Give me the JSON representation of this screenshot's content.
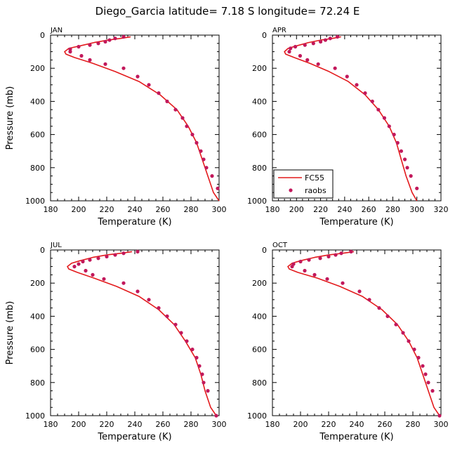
{
  "figure_title": "Diego_Garcia   latitude= 7.18 S longitude= 72.24 E",
  "chart_data": [
    {
      "type": "line",
      "panel_label": "JAN",
      "xlabel": "Temperature (K)",
      "ylabel": "Pressure (mb)",
      "xlim": [
        180,
        300
      ],
      "xticks": [
        "180",
        "200",
        "220",
        "240",
        "260",
        "280",
        "300"
      ],
      "ylim": [
        1000,
        0
      ],
      "yticks": [
        "0",
        "200",
        "400",
        "600",
        "800",
        "1000"
      ],
      "series": [
        {
          "name": "FC55",
          "kind": "line",
          "color": "#e31a1c",
          "x": [
            237,
            230,
            221,
            211,
            201,
            193,
            190,
            191,
            197,
            210,
            226,
            243,
            258,
            270,
            278,
            284,
            288,
            292,
            296,
            300
          ],
          "y": [
            10,
            20,
            30,
            45,
            65,
            80,
            100,
            115,
            135,
            170,
            220,
            280,
            360,
            450,
            550,
            650,
            750,
            850,
            950,
            1000
          ]
        },
        {
          "name": "raobs",
          "kind": "scatter",
          "color": "#c2185b",
          "x": [
            232,
            226,
            222,
            219,
            214,
            208,
            200,
            194,
            194,
            202,
            208,
            219,
            232,
            242,
            250,
            257,
            263,
            269,
            274,
            277,
            281,
            284,
            287,
            289,
            291,
            295,
            299
          ],
          "y": [
            10,
            20,
            30,
            40,
            50,
            60,
            70,
            85,
            100,
            125,
            150,
            175,
            200,
            250,
            300,
            350,
            400,
            450,
            500,
            550,
            600,
            650,
            700,
            750,
            800,
            850,
            925
          ]
        }
      ]
    },
    {
      "type": "line",
      "panel_label": "APR",
      "xlabel": "Temperature (K)",
      "ylabel": "",
      "xlim": [
        180,
        320
      ],
      "xticks": [
        "180",
        "200",
        "220",
        "240",
        "260",
        "280",
        "300",
        "320"
      ],
      "ylim": [
        1000,
        0
      ],
      "yticks": [
        "0",
        "200",
        "400",
        "600",
        "800",
        "1000"
      ],
      "legend": [
        {
          "name": "FC55",
          "kind": "line"
        },
        {
          "name": "raobs",
          "kind": "scatter"
        }
      ],
      "series": [
        {
          "name": "FC55",
          "kind": "line",
          "color": "#e31a1c",
          "x": [
            237,
            230,
            220,
            210,
            200,
            193,
            190,
            191,
            198,
            211,
            227,
            243,
            257,
            268,
            277,
            283,
            287,
            291,
            296,
            300
          ],
          "y": [
            10,
            20,
            30,
            45,
            65,
            80,
            100,
            115,
            135,
            170,
            220,
            280,
            360,
            450,
            550,
            650,
            750,
            850,
            950,
            1000
          ]
        },
        {
          "name": "raobs",
          "kind": "scatter",
          "color": "#c2185b",
          "x": [
            234,
            228,
            224,
            220,
            214,
            207,
            199,
            195,
            194,
            203,
            209,
            218,
            232,
            242,
            250,
            257,
            263,
            268,
            273,
            277,
            281,
            284,
            287,
            290,
            292,
            295,
            300
          ],
          "y": [
            10,
            20,
            30,
            40,
            50,
            60,
            70,
            80,
            100,
            125,
            150,
            175,
            200,
            250,
            300,
            350,
            400,
            450,
            500,
            550,
            600,
            650,
            700,
            750,
            800,
            850,
            925
          ]
        }
      ]
    },
    {
      "type": "line",
      "panel_label": "JUL",
      "xlabel": "Temperature (K)",
      "ylabel": "Pressure (mb)",
      "xlim": [
        180,
        300
      ],
      "xticks": [
        "180",
        "200",
        "220",
        "240",
        "260",
        "280",
        "300"
      ],
      "ylim": [
        1000,
        0
      ],
      "yticks": [
        "0",
        "200",
        "400",
        "600",
        "800",
        "1000"
      ],
      "series": [
        {
          "name": "FC55",
          "kind": "line",
          "color": "#e31a1c",
          "x": [
            238,
            230,
            220,
            210,
            201,
            195,
            192,
            193,
            199,
            211,
            227,
            243,
            257,
            268,
            276,
            283,
            287,
            290,
            294,
            298
          ],
          "y": [
            10,
            20,
            30,
            45,
            65,
            80,
            100,
            115,
            135,
            170,
            220,
            280,
            360,
            450,
            550,
            650,
            750,
            850,
            950,
            1000
          ]
        },
        {
          "name": "raobs",
          "kind": "scatter",
          "color": "#c2185b",
          "x": [
            242,
            232,
            226,
            220,
            214,
            208,
            203,
            200,
            197,
            205,
            210,
            218,
            232,
            242,
            250,
            257,
            263,
            269,
            273,
            277,
            281,
            284,
            286,
            288,
            289,
            292,
            298
          ],
          "y": [
            10,
            20,
            30,
            40,
            50,
            60,
            70,
            85,
            100,
            125,
            150,
            175,
            200,
            250,
            300,
            350,
            400,
            450,
            500,
            550,
            600,
            650,
            700,
            750,
            800,
            850,
            1000
          ]
        }
      ]
    },
    {
      "type": "line",
      "panel_label": "OCT",
      "xlabel": "Temperature (K)",
      "ylabel": "",
      "xlim": [
        180,
        300
      ],
      "xticks": [
        "180",
        "200",
        "220",
        "240",
        "260",
        "280",
        "300"
      ],
      "ylim": [
        1000,
        0
      ],
      "yticks": [
        "0",
        "200",
        "400",
        "600",
        "800",
        "1000"
      ],
      "series": [
        {
          "name": "FC55",
          "kind": "line",
          "color": "#e31a1c",
          "x": [
            238,
            230,
            220,
            210,
            200,
            194,
            191,
            192,
            198,
            212,
            228,
            244,
            258,
            269,
            277,
            283,
            287,
            291,
            295,
            299
          ],
          "y": [
            10,
            20,
            30,
            45,
            65,
            80,
            100,
            115,
            135,
            170,
            220,
            280,
            360,
            450,
            550,
            650,
            750,
            850,
            950,
            1000
          ]
        },
        {
          "name": "raobs",
          "kind": "scatter",
          "color": "#c2185b",
          "x": [
            236,
            229,
            225,
            220,
            214,
            206,
            200,
            195,
            194,
            203,
            210,
            219,
            230,
            242,
            249,
            256,
            262,
            268,
            273,
            277,
            281,
            284,
            287,
            289,
            291,
            294,
            299
          ],
          "y": [
            10,
            20,
            30,
            40,
            50,
            60,
            70,
            85,
            100,
            125,
            150,
            175,
            200,
            250,
            300,
            350,
            400,
            450,
            500,
            550,
            600,
            650,
            700,
            750,
            800,
            850,
            1000
          ]
        }
      ]
    }
  ]
}
